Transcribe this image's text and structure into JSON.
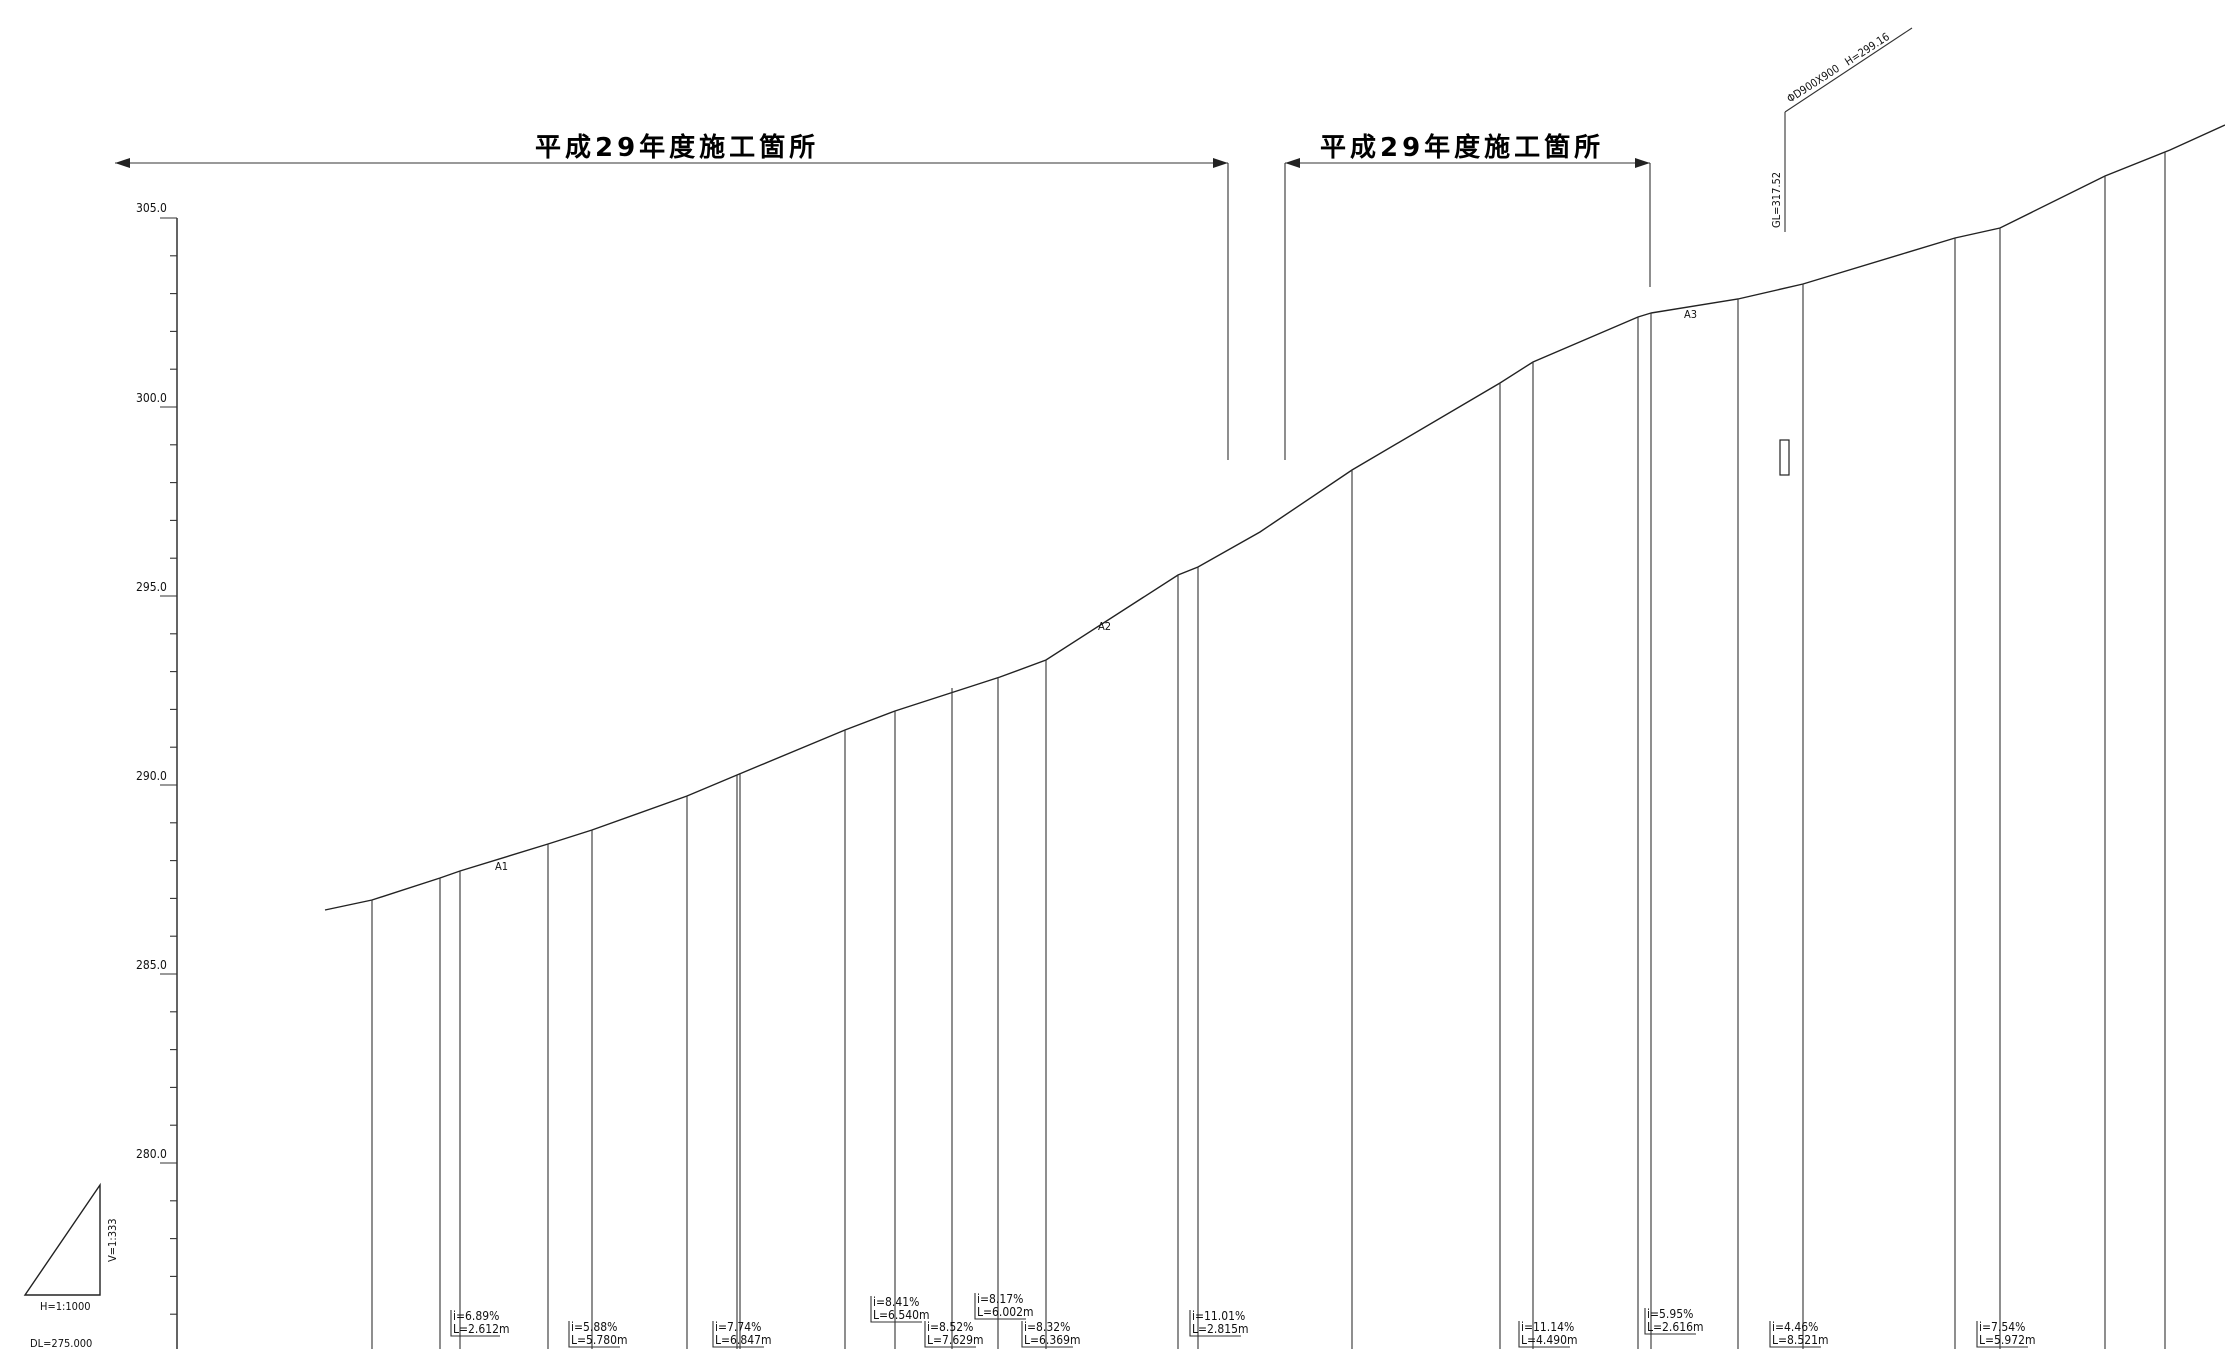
{
  "header": {
    "section_labels": [
      "平成29年度施工箇所",
      "平成29年度施工箇所"
    ]
  },
  "elevation_axis": {
    "labels": [
      "305.0",
      "300.0",
      "295.0",
      "290.0",
      "285.0",
      "280.0"
    ]
  },
  "scale": {
    "h_label": "H=1:1000",
    "v_label": "V=1:333",
    "datum_label": "DL=275.000"
  },
  "annotations": {
    "pipe_label": "ΦD900X900",
    "gl_label": "GL=317.52",
    "h_label": "H=299.16",
    "pt_labels": [
      "A1",
      "A2",
      "A3"
    ]
  },
  "grades": [
    {
      "i": "i=6.89%",
      "l": "L=2.612m"
    },
    {
      "i": "i=5.88%",
      "l": "L=5.780m"
    },
    {
      "i": "i=7.74%",
      "l": "L=6.847m"
    },
    {
      "i": "i=8.41%",
      "l": "L=6.540m"
    },
    {
      "i": "i=8.52%",
      "l": "L=7.629m"
    },
    {
      "i": "i=8.17%",
      "l": "L=6.002m"
    },
    {
      "i": "i=8.32%",
      "l": "L=6.369m"
    },
    {
      "i": "i=11.01%",
      "l": "L=2.815m"
    },
    {
      "i": "i=11.14%",
      "l": "L=4.490m"
    },
    {
      "i": "i=5.95%",
      "l": "L=2.616m"
    },
    {
      "i": "i=4.46%",
      "l": "L=8.521m"
    },
    {
      "i": "i=7.54%",
      "l": "L=5.972m"
    }
  ]
}
